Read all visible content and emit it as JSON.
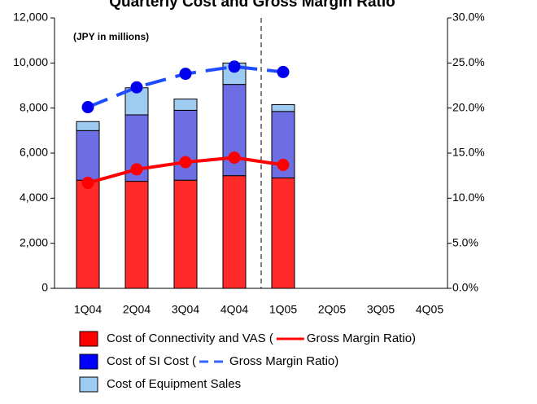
{
  "chart_data": {
    "type": "bar",
    "title": "Quarterly Cost and Gross Margin Ratio",
    "annotation": "(JPY in millions)",
    "categories": [
      "1Q04",
      "2Q04",
      "3Q04",
      "4Q04",
      "1Q05",
      "2Q05",
      "3Q05",
      "4Q05"
    ],
    "stacked": true,
    "series": [
      {
        "name": "Cost of Connectivity and VAS (",
        "color": "#ff2a2a",
        "values": [
          4800,
          4750,
          4800,
          5000,
          4900,
          null,
          null,
          null
        ]
      },
      {
        "name": "Cost of SI Cost (",
        "color": "#6e6ee4",
        "values": [
          2200,
          2950,
          3100,
          4050,
          2950,
          null,
          null,
          null
        ]
      },
      {
        "name": "Cost of Equipment Sales",
        "color": "#9ecbf2",
        "values": [
          400,
          1200,
          500,
          950,
          300,
          null,
          null,
          null
        ]
      },
      {
        "name": "Gross Margin Ratio)",
        "type": "line",
        "axis": "y2",
        "color": "#ff0000",
        "dashed": false,
        "values": [
          11.7,
          13.2,
          14.0,
          14.5,
          13.7,
          null,
          null,
          null
        ]
      },
      {
        "name": "Gross Margin Ratio)",
        "type": "line",
        "axis": "y2",
        "color": "#1f4cff",
        "dashed": true,
        "values": [
          20.1,
          22.3,
          23.8,
          24.6,
          24.0,
          null,
          null,
          null
        ]
      }
    ],
    "ylim": [
      0,
      12000
    ],
    "yticks": [
      0,
      {
        "value": 2000,
        "label": "2,000"
      },
      {
        "value": 4000,
        "label": "4,000"
      },
      {
        "value": 6000,
        "label": "6,000"
      },
      {
        "value": 8000,
        "label": "8,000"
      },
      {
        "value": 10000,
        "label": "10,000"
      },
      {
        "value": 12000,
        "label": "12,000"
      }
    ],
    "y2lim": [
      0,
      30
    ],
    "y2ticks": [
      {
        "value": 0,
        "label": "0.0%"
      },
      {
        "value": 5,
        "label": "5.0%"
      },
      {
        "value": 10,
        "label": "10.0%"
      },
      {
        "value": 15,
        "label": "15.0%"
      },
      {
        "value": 20,
        "label": "20.0%"
      },
      {
        "value": 25,
        "label": "25.0%"
      },
      {
        "value": 30,
        "label": "30.0%"
      }
    ],
    "grid": false
  }
}
